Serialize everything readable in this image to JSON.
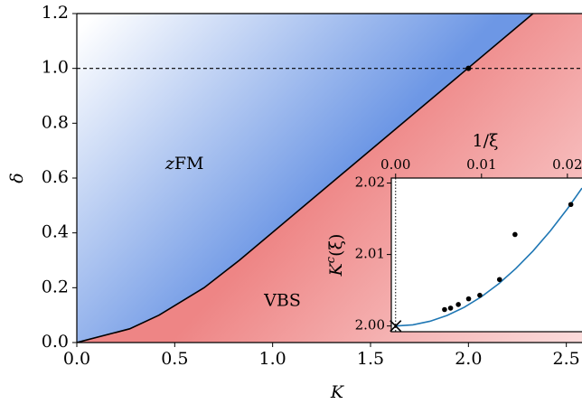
{
  "chart_data": [
    {
      "type": "line",
      "x_label": "K",
      "y_label": "δ",
      "xlim": [
        0,
        2.58
      ],
      "ylim": [
        0,
        1.2
      ],
      "xticks": [
        {
          "value": 0,
          "label": "0.0"
        },
        {
          "value": 0.5,
          "label": "0.5"
        },
        {
          "value": 1,
          "label": "1.0"
        },
        {
          "value": 1.5,
          "label": "1.5"
        },
        {
          "value": 2,
          "label": "2.0"
        },
        {
          "value": 2.5,
          "label": "2.5"
        }
      ],
      "yticks": [
        {
          "value": 0,
          "label": "0.0"
        },
        {
          "value": 0.2,
          "label": "0.2"
        },
        {
          "value": 0.4,
          "label": "0.4"
        },
        {
          "value": 0.6,
          "label": "0.6"
        },
        {
          "value": 0.8,
          "label": "0.8"
        },
        {
          "value": 1,
          "label": "1.0"
        },
        {
          "value": 1.2,
          "label": "1.2"
        }
      ],
      "series": [
        {
          "name": "phase boundary",
          "color": "#000000",
          "x": [
            0,
            0.27,
            0.42,
            0.65,
            0.83,
            2.33
          ],
          "values": [
            0,
            0.05,
            0.1,
            0.2,
            0.3,
            1.2
          ]
        }
      ],
      "reference_line": 1.0,
      "point": {
        "x": 2.0,
        "y": 1.0
      },
      "region_colors": {
        "upper": "#6d97e5",
        "lower": "#ee8585"
      },
      "annotations": [
        {
          "italic": "z",
          "text": "FM"
        },
        {
          "text": "VBS"
        }
      ]
    },
    {
      "type": "scatter",
      "x_label": "1/ξ",
      "y_label": {
        "base": "K",
        "sup": "c",
        "rest": "(ξ)"
      },
      "xlim": [
        -0.0005,
        0.0217
      ],
      "ylim": [
        1.9992,
        2.0207
      ],
      "xticks": [
        {
          "value": 0,
          "label": "0.00"
        },
        {
          "value": 0.01,
          "label": "0.01"
        },
        {
          "value": 0.02,
          "label": "0.02"
        }
      ],
      "yticks": [
        {
          "value": 2.0,
          "label": "2.00"
        },
        {
          "value": 2.01,
          "label": "2.01"
        },
        {
          "value": 2.02,
          "label": "2.02"
        }
      ],
      "series": [
        {
          "name": "data",
          "color": "#000000",
          "x": [
            0.0057,
            0.0064,
            0.0073,
            0.0085,
            0.0098,
            0.0121,
            0.0139,
            0.0204
          ],
          "values": [
            2.0023,
            2.0025,
            2.003,
            2.0038,
            2.0043,
            2.0065,
            2.0128,
            2.017
          ]
        },
        {
          "name": "fit",
          "color": "#1f77b4",
          "x": [
            0,
            0.002,
            0.004,
            0.006,
            0.008,
            0.01,
            0.012,
            0.014,
            0.016,
            0.018,
            0.02,
            0.0217
          ],
          "values": [
            2.0,
            2.00016,
            2.00066,
            2.00148,
            2.00262,
            2.0041,
            2.0059,
            2.00804,
            2.0105,
            2.01328,
            2.0164,
            2.0193
          ]
        }
      ],
      "extrapolated": {
        "x": 0,
        "y": 2.0
      }
    }
  ]
}
